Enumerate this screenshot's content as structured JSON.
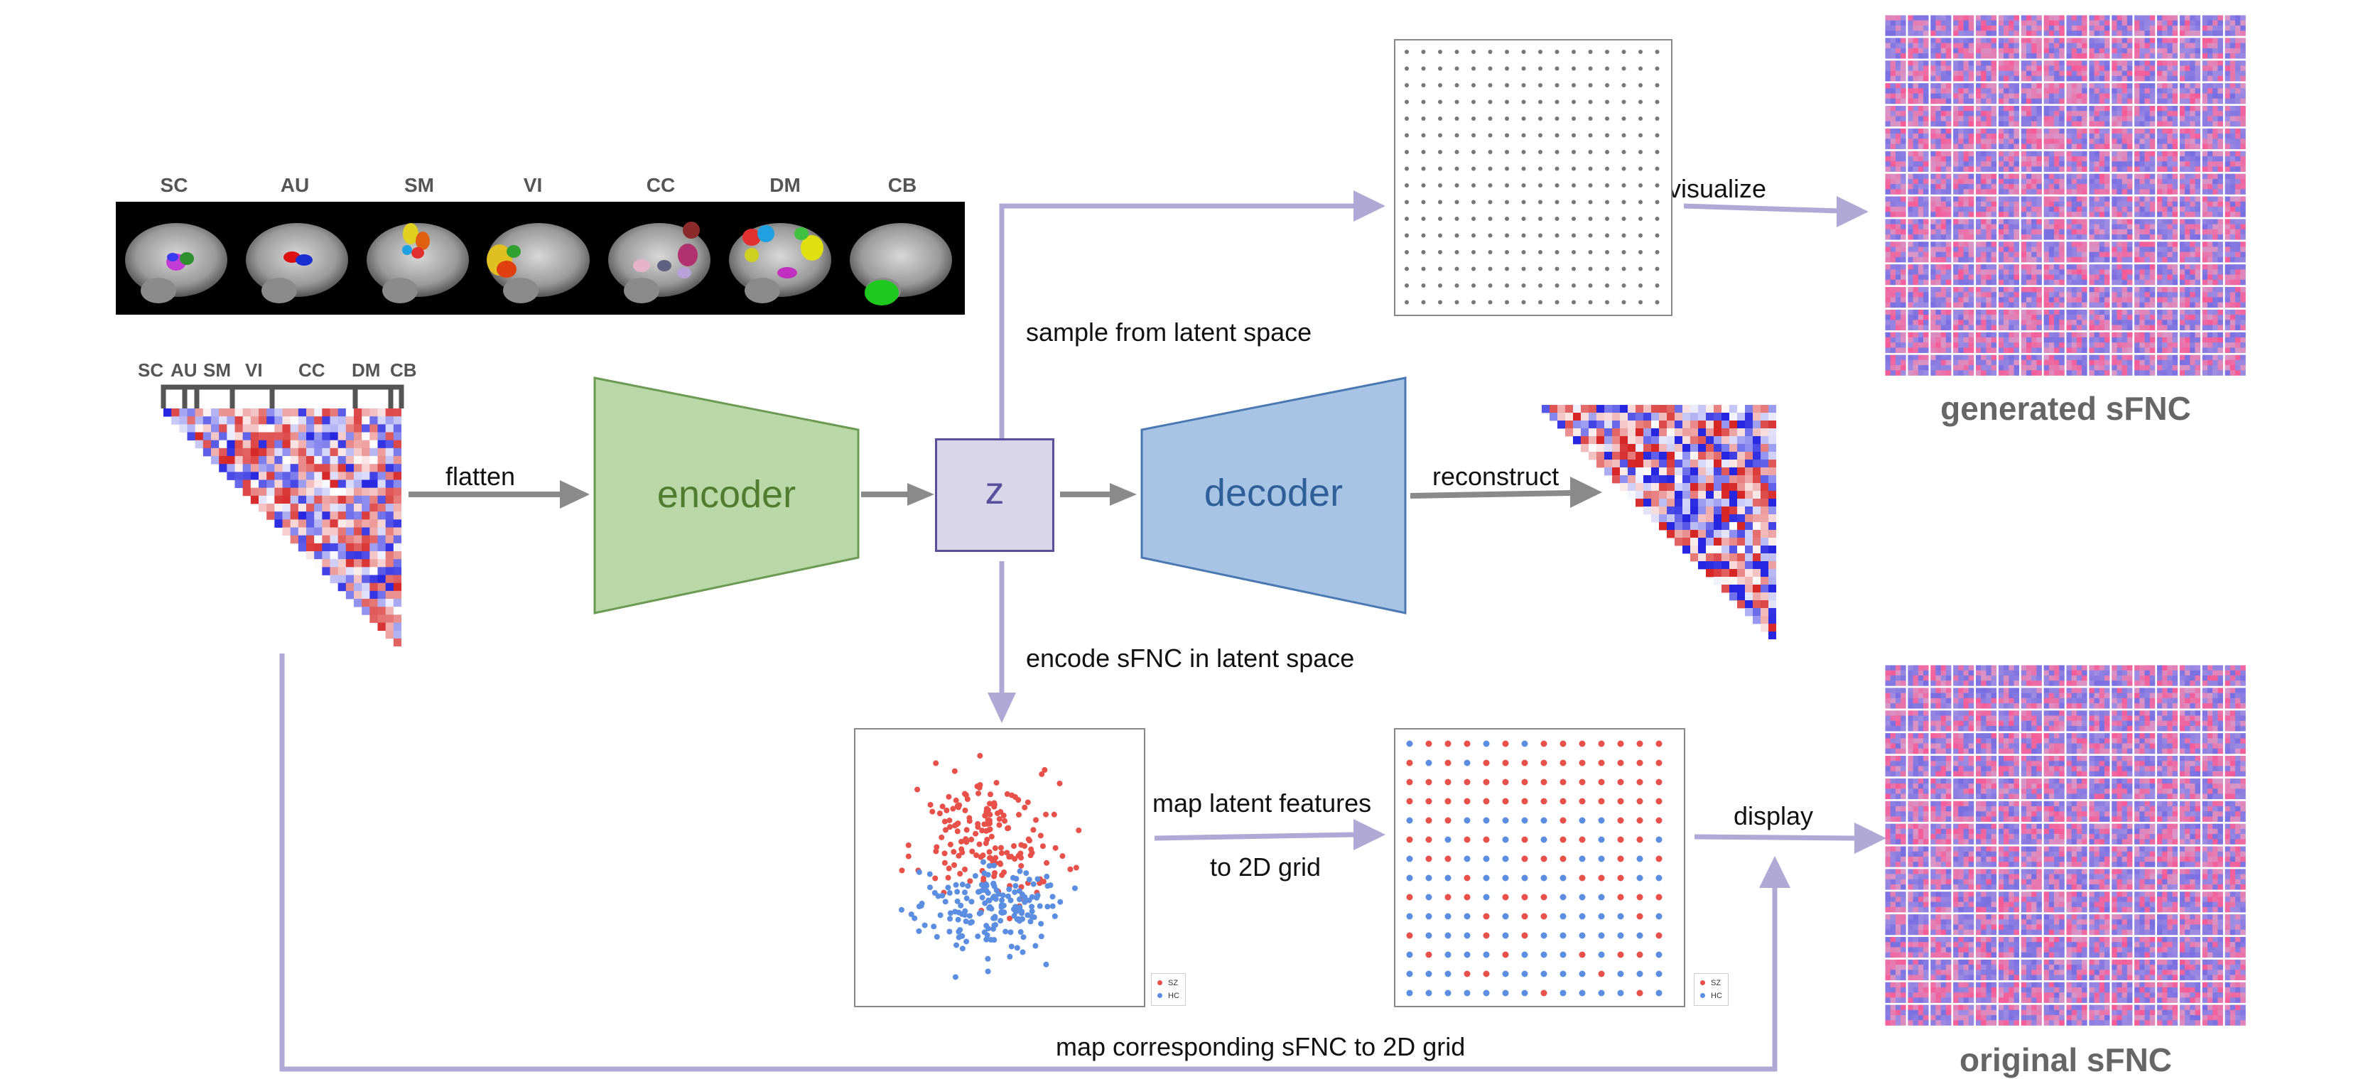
{
  "networks": [
    "SC",
    "AU",
    "SM",
    "VI",
    "CC",
    "DM",
    "CB"
  ],
  "matrix_networks": [
    "SC",
    "AU",
    "SM",
    "VI",
    "CC",
    "DM",
    "CB"
  ],
  "labels": {
    "flatten": "flatten",
    "encoder": "encoder",
    "z": "z",
    "decoder": "decoder",
    "reconstruct": "reconstruct",
    "sample": "sample from latent space",
    "visualize": "visualize",
    "encode": "encode sFNC in latent space",
    "map_latent_1": "map latent features",
    "map_latent_2": "to 2D grid",
    "display": "display",
    "map_corresponding": "map corresponding sFNC to 2D grid",
    "generated": "generated sFNC",
    "original": "original sFNC"
  },
  "legend": {
    "sz": "SZ",
    "hc": "HC"
  },
  "colors": {
    "sz": "#e8504a",
    "hc": "#5b8ee0",
    "arrow_gray": "#8a8a8a",
    "arrow_purple": "#b0a9d6",
    "encoder_fill": "#b9d7a7",
    "encoder_text": "#4f7c2e",
    "decoder_fill": "#a8c4e5",
    "decoder_text": "#2f5f99",
    "z_fill": "#dad6ea",
    "z_text": "#5a4f9c"
  }
}
